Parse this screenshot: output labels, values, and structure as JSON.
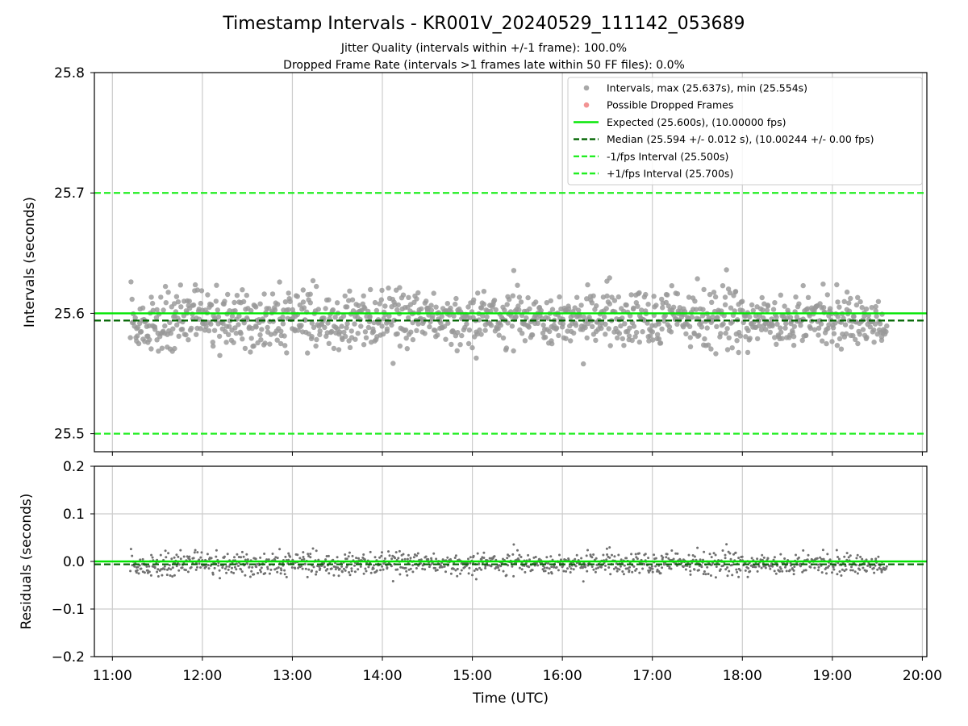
{
  "chart_data": {
    "type": "scatter",
    "title": "Timestamp Intervals - KR001V_20240529_111142_053689",
    "subtitle_lines": [
      "Jitter Quality (intervals within +/-1 frame): 100.0%",
      "Dropped Frame Rate (intervals >1 frames late within 50 FF files): 0.0%"
    ],
    "xlabel": "Time (UTC)",
    "x_ticks": [
      "11:00",
      "12:00",
      "13:00",
      "14:00",
      "15:00",
      "16:00",
      "17:00",
      "18:00",
      "19:00",
      "20:00"
    ],
    "xlim_hours": [
      10.8,
      20.05
    ],
    "data_time_range_hours": [
      11.2,
      19.6
    ],
    "intervals_panel": {
      "ylabel": "Intervals (seconds)",
      "ylim": [
        25.485,
        25.8
      ],
      "y_ticks": [
        "25.5",
        "25.6",
        "25.7",
        "25.8"
      ],
      "y_tick_values": [
        25.5,
        25.6,
        25.7,
        25.8
      ],
      "expected": 25.6,
      "median": 25.594,
      "lower_bound": 25.5,
      "upper_bound": 25.7,
      "max": 25.637,
      "min": 25.554,
      "std": 0.012,
      "approx_point_count": 1180
    },
    "residuals_panel": {
      "ylabel": "Residuals (seconds)",
      "ylim": [
        -0.2,
        0.2
      ],
      "y_ticks": [
        "0.2",
        "0.1",
        "0.0",
        "−0.1",
        "−0.2"
      ],
      "y_tick_values": [
        0.2,
        0.1,
        0.0,
        -0.1,
        -0.2
      ],
      "zero_line": 0.0,
      "median_offset": -0.006
    },
    "legend": {
      "position": "top-right",
      "entries": [
        {
          "label": "Intervals, max (25.637s), min (25.554s)",
          "kind": "marker",
          "color": "#999999"
        },
        {
          "label": "Possible Dropped Frames",
          "kind": "marker",
          "color": "#f08080"
        },
        {
          "label": "Expected (25.600s), (10.00000 fps)",
          "kind": "line-solid",
          "color": "#00e600"
        },
        {
          "label": "Median (25.594 +/- 0.012 s), (10.00244 +/- 0.00 fps)",
          "kind": "line-dashed",
          "color": "#006400"
        },
        {
          "label": "-1/fps Interval (25.500s)",
          "kind": "line-dashed",
          "color": "#22ee22"
        },
        {
          "label": "+1/fps Interval (25.700s)",
          "kind": "line-dashed",
          "color": "#22ee22"
        }
      ]
    },
    "colors": {
      "intervals_marker": "#999999",
      "residual_marker": "#707070",
      "expected": "#00e600",
      "median": "#006400",
      "bounds": "#22ee22",
      "grid": "#cccccc"
    }
  }
}
